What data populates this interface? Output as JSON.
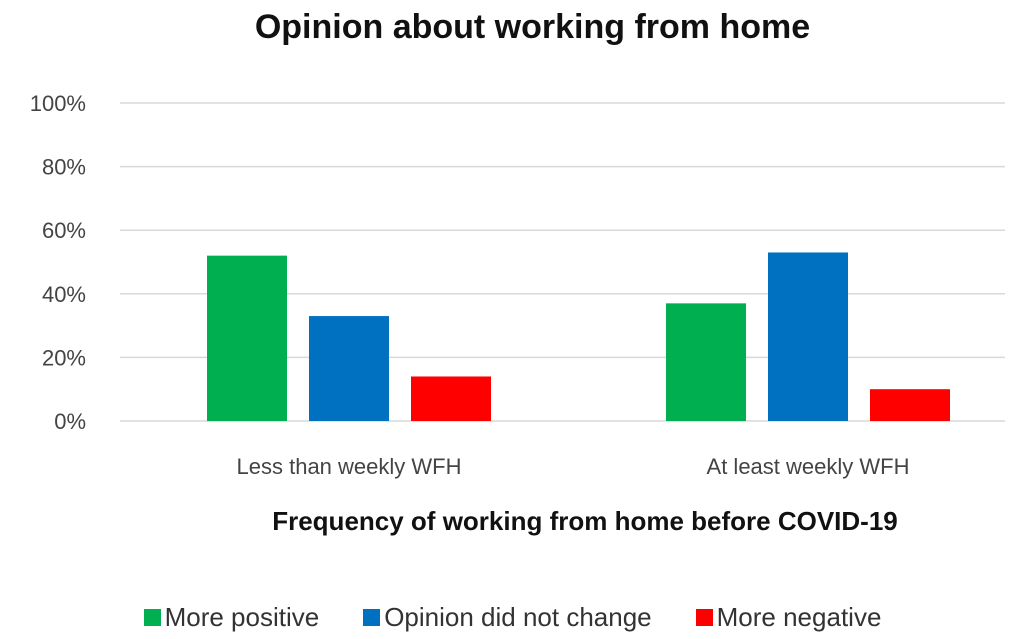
{
  "chart_data": {
    "type": "bar",
    "title": "Opinion about working from home",
    "xlabel": "Frequency of working from home before COVID-19",
    "ylabel": "",
    "categories": [
      "Less than weekly WFH",
      "At least weekly WFH"
    ],
    "yticks": [
      "0%",
      "20%",
      "40%",
      "60%",
      "80%",
      "100%"
    ],
    "ylim": [
      0,
      100
    ],
    "grid": true,
    "legend_position": "bottom",
    "series": [
      {
        "name": "More positive",
        "values": [
          52,
          37
        ],
        "color": "#00b050"
      },
      {
        "name": "Opinion did not change",
        "values": [
          33,
          53
        ],
        "color": "#0070c0"
      },
      {
        "name": "More negative",
        "values": [
          14,
          10
        ],
        "color": "#ff0000"
      }
    ]
  }
}
